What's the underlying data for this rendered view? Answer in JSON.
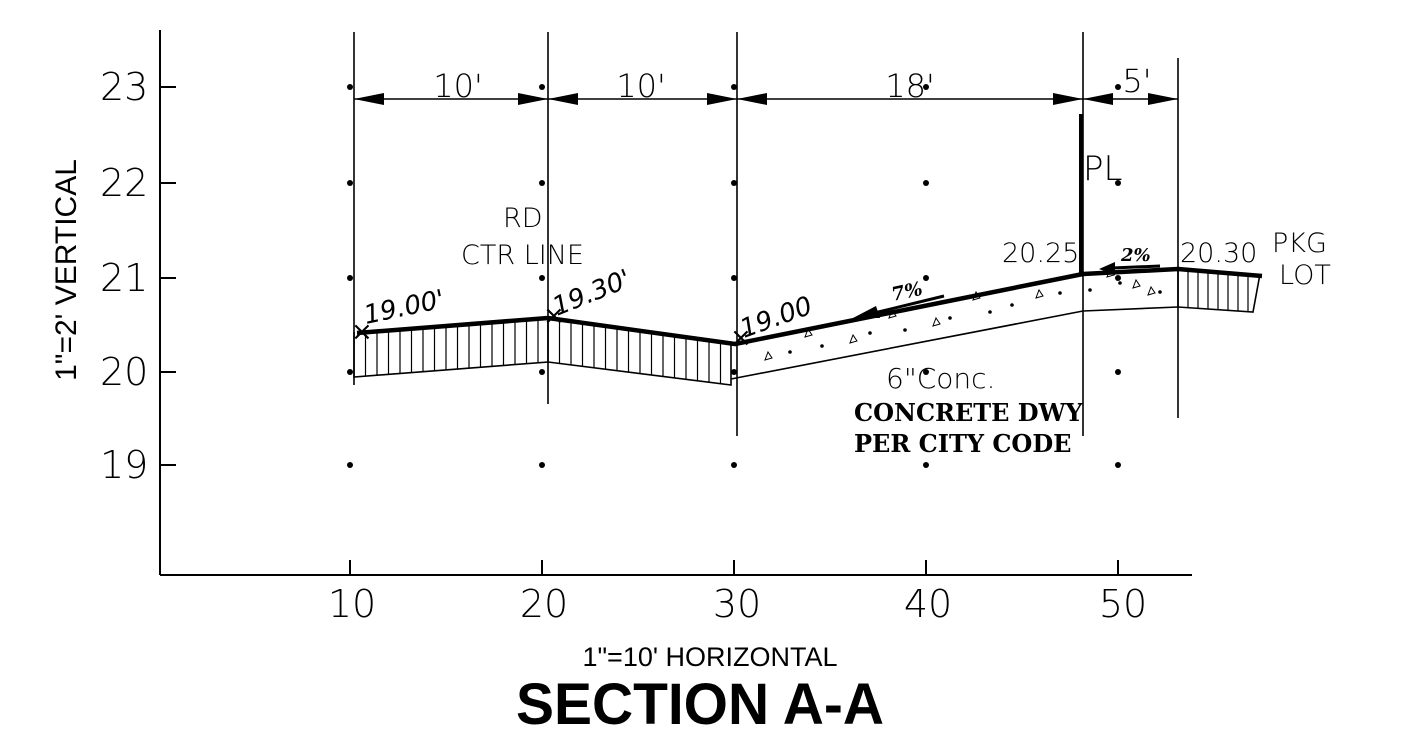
{
  "title": "SECTION A-A",
  "scales": {
    "horizontal": "1\"=10' HORIZONTAL",
    "vertical": "1\"=2' VERTICAL"
  },
  "axes": {
    "x_ticks": [
      "10",
      "20",
      "30",
      "40",
      "50"
    ],
    "y_ticks": [
      "23",
      "22",
      "21",
      "20",
      "19"
    ]
  },
  "dimensions": [
    "10'",
    "10'",
    "18'",
    "5'"
  ],
  "elevations": {
    "left_edge": "19.00'",
    "center": "19.30'",
    "gutter": "19.00",
    "property_line": "20.25",
    "lot": "20.30"
  },
  "slopes": {
    "driveway": "7%",
    "walk": "2%"
  },
  "labels": {
    "road_center_1": "RD",
    "road_center_2": "CTR LINE",
    "property_line": "PL",
    "lot_1": "PKG",
    "lot_2": "LOT",
    "concrete": "6\"Conc.",
    "note_1": "CONCRETE DWY",
    "note_2": "PER CITY CODE"
  },
  "colors": {
    "ink": "#000000",
    "background": "#ffffff"
  }
}
